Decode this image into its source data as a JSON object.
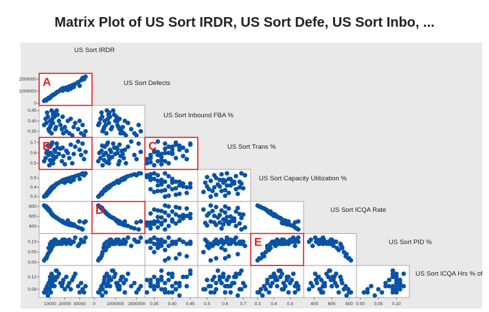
{
  "chart_data": {
    "type": "scatter",
    "subtype": "matrix-plot-lower-triangle",
    "title": "Matrix Plot of US Sort IRDR, US Sort Defe, US Sort Inbo, ...",
    "variables": [
      "US Sort IRDR",
      "US Sort Defects",
      "US Sort Inbound FBA %",
      "US Sort Trans %",
      "US Sort Capacity Utilization %",
      "US Sort ICQA Rate",
      "US Sort PID %",
      "US Sort ICQA Hrs % of"
    ],
    "ranges": [
      [
        4000,
        37000
      ],
      [
        0,
        2300000
      ],
      [
        0.33,
        0.465
      ],
      [
        0.46,
        0.73
      ],
      [
        0.27,
        0.57
      ],
      [
        300,
        860
      ],
      [
        -0.005,
        0.13
      ],
      [
        0.06,
        0.15
      ]
    ],
    "ticks": [
      [
        "10000",
        "20000",
        "30000"
      ],
      [
        "0",
        "1000000",
        "2000000"
      ],
      [
        "0.35",
        "0.40",
        "0.45"
      ],
      [
        "0.5",
        "0.6",
        "0.7"
      ],
      [
        "0.3",
        "0.4",
        "0.5"
      ],
      [
        "400",
        "600",
        "800"
      ],
      [
        "0.00",
        "0.05",
        "0.10"
      ],
      [
        "0.08",
        "0.12"
      ]
    ],
    "tick_values": [
      [
        10000,
        20000,
        30000
      ],
      [
        0,
        1000000,
        2000000
      ],
      [
        0.35,
        0.4,
        0.45
      ],
      [
        0.5,
        0.6,
        0.7
      ],
      [
        0.3,
        0.4,
        0.5
      ],
      [
        400,
        600,
        800
      ],
      [
        0,
        0.05,
        0.1
      ],
      [
        0.08,
        0.12
      ]
    ],
    "observations": [
      [
        6000,
        200000,
        0.38,
        0.52,
        0.3,
        820,
        0.01,
        0.07
      ],
      [
        7000,
        300000,
        0.41,
        0.55,
        0.32,
        790,
        0.02,
        0.08
      ],
      [
        8000,
        350000,
        0.44,
        0.62,
        0.34,
        760,
        0.03,
        0.09
      ],
      [
        9000,
        450000,
        0.36,
        0.58,
        0.36,
        720,
        0.07,
        0.1
      ],
      [
        10000,
        500000,
        0.4,
        0.66,
        0.38,
        700,
        0.09,
        0.12
      ],
      [
        11000,
        600000,
        0.45,
        0.68,
        0.4,
        650,
        0.1,
        0.13
      ],
      [
        12000,
        700000,
        0.39,
        0.5,
        0.41,
        620,
        0.08,
        0.11
      ],
      [
        13000,
        750000,
        0.42,
        0.63,
        0.42,
        600,
        0.11,
        0.09
      ],
      [
        14000,
        850000,
        0.37,
        0.56,
        0.43,
        580,
        0.09,
        0.14
      ],
      [
        15000,
        950000,
        0.43,
        0.65,
        0.44,
        560,
        0.1,
        0.12
      ],
      [
        9500,
        400000,
        0.35,
        0.48,
        0.35,
        740,
        0.05,
        0.08
      ],
      [
        10500,
        550000,
        0.38,
        0.6,
        0.37,
        680,
        0.06,
        0.07
      ],
      [
        11500,
        650000,
        0.41,
        0.7,
        0.39,
        640,
        0.1,
        0.1
      ],
      [
        12500,
        720000,
        0.44,
        0.54,
        0.4,
        610,
        0.09,
        0.12
      ],
      [
        13500,
        800000,
        0.36,
        0.61,
        0.42,
        590,
        0.11,
        0.11
      ],
      [
        16000,
        1000000,
        0.4,
        0.59,
        0.45,
        540,
        0.09,
        0.13
      ],
      [
        17000,
        1100000,
        0.38,
        0.64,
        0.46,
        520,
        0.1,
        0.1
      ],
      [
        18000,
        1200000,
        0.36,
        0.52,
        0.47,
        500,
        0.09,
        0.09
      ],
      [
        19000,
        1250000,
        0.34,
        0.57,
        0.48,
        480,
        0.1,
        0.11
      ],
      [
        20000,
        1150000,
        0.37,
        0.49,
        0.45,
        470,
        0.11,
        0.08
      ],
      [
        21000,
        1300000,
        0.35,
        0.62,
        0.49,
        450,
        0.09,
        0.12
      ],
      [
        22000,
        1100000,
        0.4,
        0.6,
        0.47,
        520,
        0.1,
        0.09
      ],
      [
        23000,
        1400000,
        0.34,
        0.55,
        0.5,
        430,
        0.11,
        0.1
      ],
      [
        24000,
        1200000,
        0.41,
        0.68,
        0.46,
        460,
        0.09,
        0.08
      ],
      [
        25000,
        1500000,
        0.33,
        0.5,
        0.51,
        420,
        0.1,
        0.11
      ],
      [
        27000,
        1600000,
        0.39,
        0.66,
        0.52,
        410,
        0.12,
        0.13
      ],
      [
        29000,
        1750000,
        0.36,
        0.71,
        0.53,
        380,
        0.08,
        0.09
      ],
      [
        30000,
        1450000,
        0.4,
        0.63,
        0.49,
        500,
        0.09,
        0.07
      ],
      [
        31000,
        1900000,
        0.34,
        0.58,
        0.54,
        360,
        0.11,
        0.1
      ],
      [
        32000,
        2100000,
        0.38,
        0.69,
        0.55,
        340,
        0.1,
        0.08
      ],
      [
        33000,
        2000000,
        0.33,
        0.54,
        0.53,
        480,
        0.1,
        0.07
      ],
      [
        34000,
        2200000,
        0.35,
        0.61,
        0.55,
        500,
        0.12,
        0.09
      ],
      [
        8500,
        380000,
        0.42,
        0.67,
        0.33,
        770,
        0.04,
        0.06
      ],
      [
        7500,
        250000,
        0.39,
        0.6,
        0.31,
        800,
        0.02,
        0.07
      ],
      [
        10000,
        480000,
        0.37,
        0.53,
        0.36,
        710,
        0.08,
        0.11
      ],
      [
        12000,
        680000,
        0.43,
        0.57,
        0.41,
        630,
        0.1,
        0.12
      ],
      [
        14500,
        900000,
        0.45,
        0.69,
        0.44,
        570,
        0.09,
        0.14
      ],
      [
        11000,
        580000,
        0.34,
        0.51,
        0.38,
        660,
        0.07,
        0.09
      ],
      [
        26000,
        1350000,
        0.37,
        0.59,
        0.48,
        440,
        0.1,
        0.12
      ],
      [
        18500,
        1050000,
        0.42,
        0.65,
        0.46,
        510,
        0.11,
        0.1
      ]
    ],
    "highlights": [
      {
        "label": "A",
        "row_var": "US Sort Defects",
        "col_var": "US Sort IRDR"
      },
      {
        "label": "B",
        "row_var": "US Sort Trans %",
        "col_var": "US Sort IRDR"
      },
      {
        "label": "C",
        "row_var": "US Sort Trans %",
        "col_var": "US Sort Inbound FBA %"
      },
      {
        "label": "D",
        "row_var": "US Sort ICQA Rate",
        "col_var": "US Sort Defects"
      },
      {
        "label": "E",
        "row_var": "US Sort PID %",
        "col_var": "US Sort Capacity Utilization %"
      }
    ],
    "colors": {
      "points": "#0a52a5",
      "highlight": "#e02020",
      "background": "#e9e9e9"
    },
    "grid": false
  }
}
